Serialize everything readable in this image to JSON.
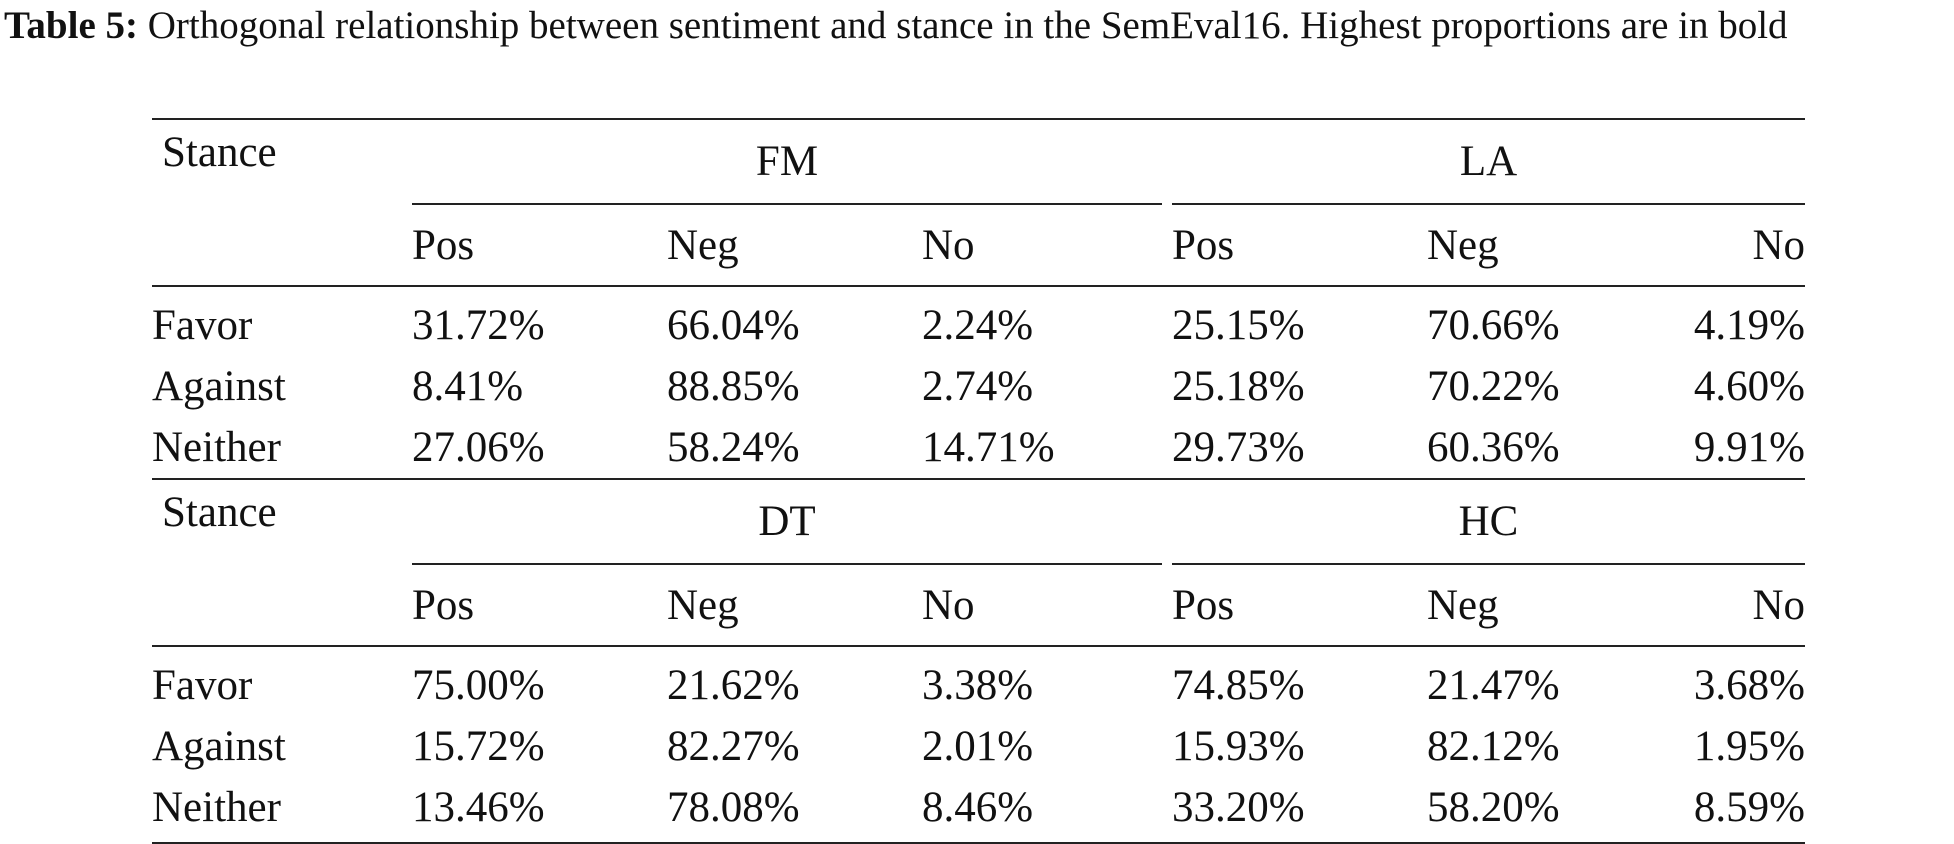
{
  "caption": {
    "label": "Table 5:",
    "text": " Orthogonal relationship between sentiment and stance in the SemEval16. Highest proportions are in bold"
  },
  "blocks": [
    {
      "stance_header": "Stance",
      "groups": [
        {
          "name": "FM",
          "cols": [
            "Pos",
            "Neg",
            "No"
          ]
        },
        {
          "name": "LA",
          "cols": [
            "Pos",
            "Neg",
            "No"
          ]
        }
      ],
      "rows": [
        {
          "label": "Favor",
          "values": [
            "31.72%",
            "66.04%",
            "2.24%",
            "25.15%",
            "70.66%",
            "4.19%"
          ]
        },
        {
          "label": "Against",
          "values": [
            "8.41%",
            "88.85%",
            "2.74%",
            "25.18%",
            "70.22%",
            "4.60%"
          ]
        },
        {
          "label": "Neither",
          "values": [
            "27.06%",
            "58.24%",
            "14.71%",
            "29.73%",
            "60.36%",
            "9.91%"
          ]
        }
      ]
    },
    {
      "stance_header": "Stance",
      "groups": [
        {
          "name": "DT",
          "cols": [
            "Pos",
            "Neg",
            "No"
          ]
        },
        {
          "name": "HC",
          "cols": [
            "Pos",
            "Neg",
            "No"
          ]
        }
      ],
      "rows": [
        {
          "label": "Favor",
          "values": [
            "75.00%",
            "21.62%",
            "3.38%",
            "74.85%",
            "21.47%",
            "3.68%"
          ]
        },
        {
          "label": "Against",
          "values": [
            "15.72%",
            "82.27%",
            "2.01%",
            "15.93%",
            "82.12%",
            "1.95%"
          ]
        },
        {
          "label": "Neither",
          "values": [
            "13.46%",
            "78.08%",
            "8.46%",
            "33.20%",
            "58.20%",
            "8.59%"
          ]
        }
      ]
    }
  ]
}
